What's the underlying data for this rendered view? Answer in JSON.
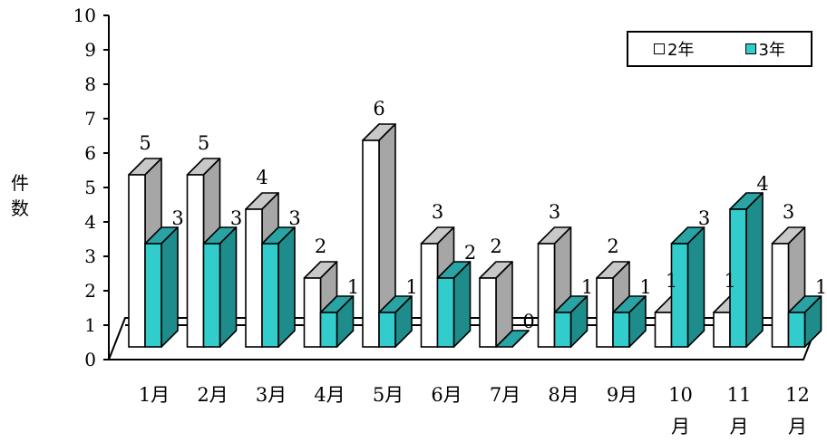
{
  "chart_data": {
    "type": "bar",
    "categories": [
      "1月",
      "2月",
      "3月",
      "4月",
      "5月",
      "6月",
      "7月",
      "8月",
      "9月",
      "10月",
      "11月",
      "12月"
    ],
    "series": [
      {
        "name": "2年",
        "values": [
          5,
          5,
          4,
          2,
          6,
          3,
          2,
          3,
          2,
          1,
          1,
          3
        ]
      },
      {
        "name": "3年",
        "values": [
          3,
          3,
          3,
          1,
          1,
          2,
          0,
          1,
          1,
          3,
          4,
          1
        ]
      }
    ],
    "ylabel": "件数",
    "ylim": [
      0,
      10
    ],
    "yticks": [
      "0",
      "1",
      "2",
      "3",
      "4",
      "5",
      "6",
      "7",
      "8",
      "9",
      "10"
    ],
    "legend_position": "top-right",
    "style": "3d-clustered",
    "colors": {
      "2年": "#ffffff",
      "3年": "#33cccc"
    }
  }
}
